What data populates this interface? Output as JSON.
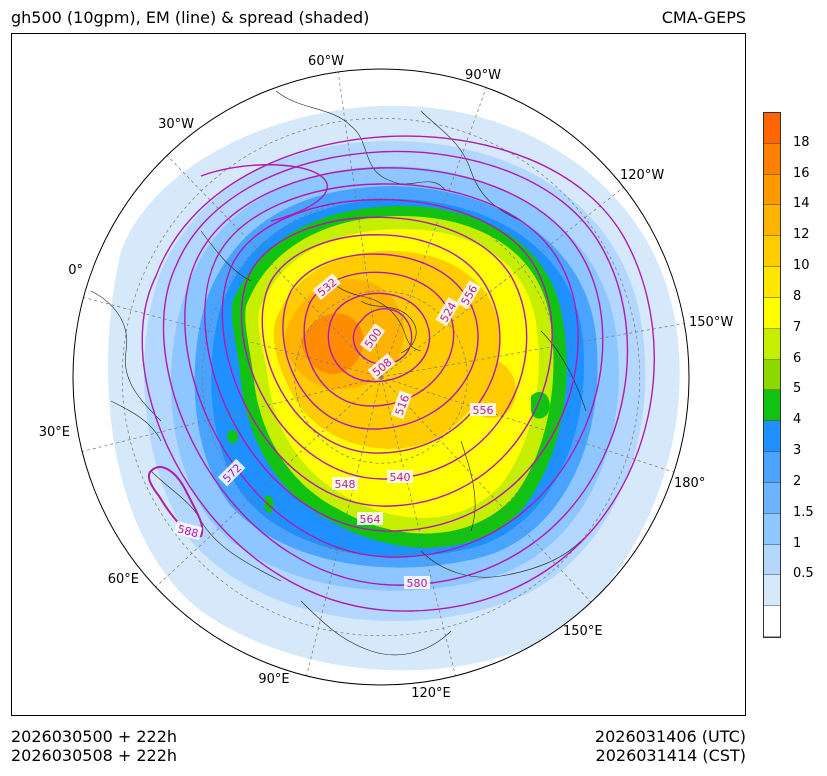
{
  "header": {
    "title_left": "gh500 (10gpm), EM (line) & spread (shaded)",
    "title_right": "CMA-GEPS"
  },
  "footer": {
    "init_utc": "2026030500 + 222h",
    "init_cst": "2026030508 + 222h",
    "valid_utc": "2026031406 (UTC)",
    "valid_cst": "2026031414 (CST)"
  },
  "map": {
    "projection": "north polar stereographic",
    "longitude_labels": [
      "60°W",
      "90°W",
      "120°W",
      "150°W",
      "180°",
      "150°E",
      "120°E",
      "90°E",
      "60°E",
      "30°E",
      "0°",
      "30°W"
    ],
    "contour_labels": [
      "500",
      "508",
      "516",
      "524",
      "532",
      "540",
      "548",
      "556",
      "556",
      "564",
      "572",
      "580",
      "588"
    ],
    "contour_color": "#b01ab0",
    "spread_colors": {
      "low": "#d6e9fb",
      "mid": "#1e90ff",
      "green": "#11c211",
      "yellow": "#ffff00",
      "orange": "#ff8c00"
    }
  },
  "colorbar": {
    "ticks": [
      "18",
      "16",
      "14",
      "12",
      "10",
      "8",
      "7",
      "6",
      "5",
      "4",
      "3",
      "2",
      "1.5",
      "1",
      "0.5"
    ],
    "colors": [
      "#ff6600",
      "#ff8000",
      "#ff9900",
      "#ffb300",
      "#ffcc00",
      "#ffe600",
      "#ffff00",
      "#c6ee00",
      "#8cd800",
      "#11c211",
      "#1e90ff",
      "#4aa3ff",
      "#6cb4ff",
      "#8ec6ff",
      "#b3d7ff",
      "#d6e9fb",
      "#ffffff"
    ]
  }
}
